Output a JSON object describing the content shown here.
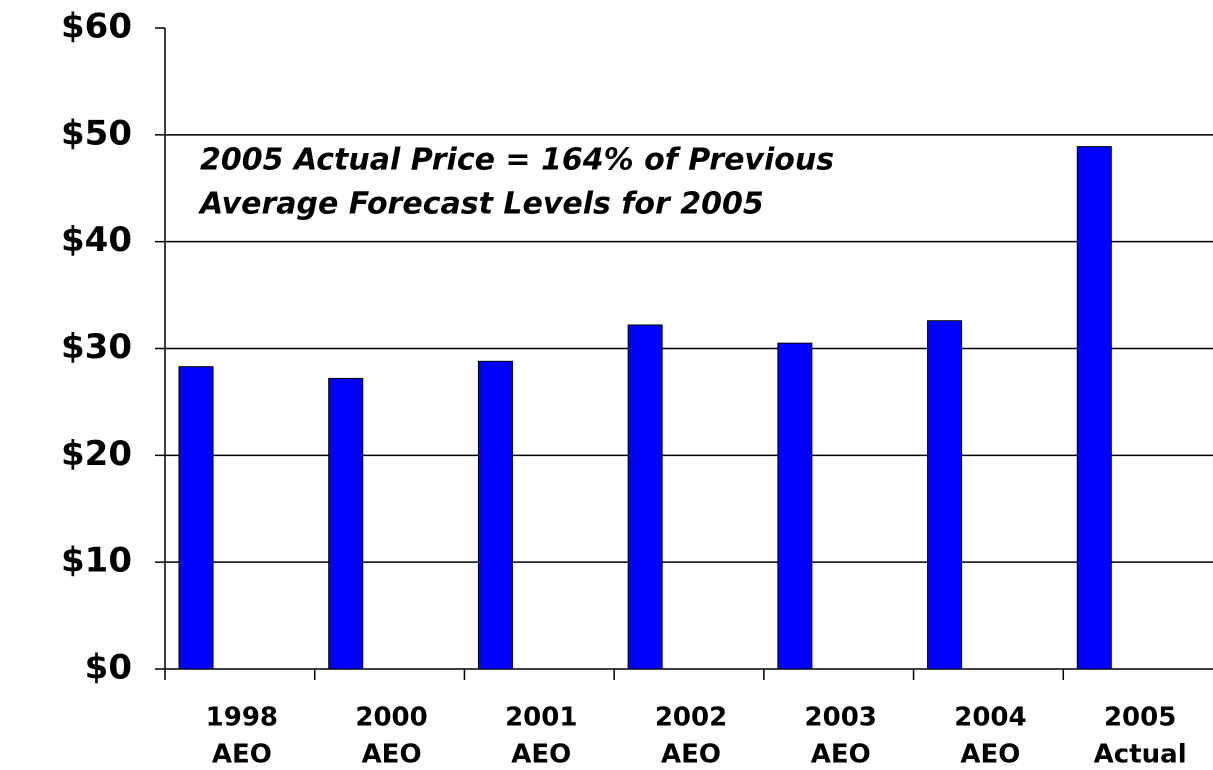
{
  "chart_data": {
    "type": "bar",
    "categories": [
      [
        "1998",
        "AEO"
      ],
      [
        "2000",
        "AEO"
      ],
      [
        "2001",
        "AEO"
      ],
      [
        "2002",
        "AEO"
      ],
      [
        "2003",
        "AEO"
      ],
      [
        "2004",
        "AEO"
      ],
      [
        "2005",
        "Actual"
      ]
    ],
    "values": [
      28.3,
      27.2,
      28.8,
      32.2,
      30.5,
      32.6,
      48.9
    ],
    "color": "#0000ff",
    "ylim": [
      0,
      60
    ],
    "yticks": [
      {
        "value": 0,
        "label": "$0"
      },
      {
        "value": 10,
        "label": "$10"
      },
      {
        "value": 20,
        "label": "$20"
      },
      {
        "value": 30,
        "label": "$30"
      },
      {
        "value": 40,
        "label": "$40"
      },
      {
        "value": 50,
        "label": "$50"
      },
      {
        "value": 60,
        "label": "$60"
      }
    ],
    "grid": true,
    "annotations": [
      "2005 Actual Price = 164% of Previous",
      "Average Forecast Levels for 2005"
    ]
  }
}
